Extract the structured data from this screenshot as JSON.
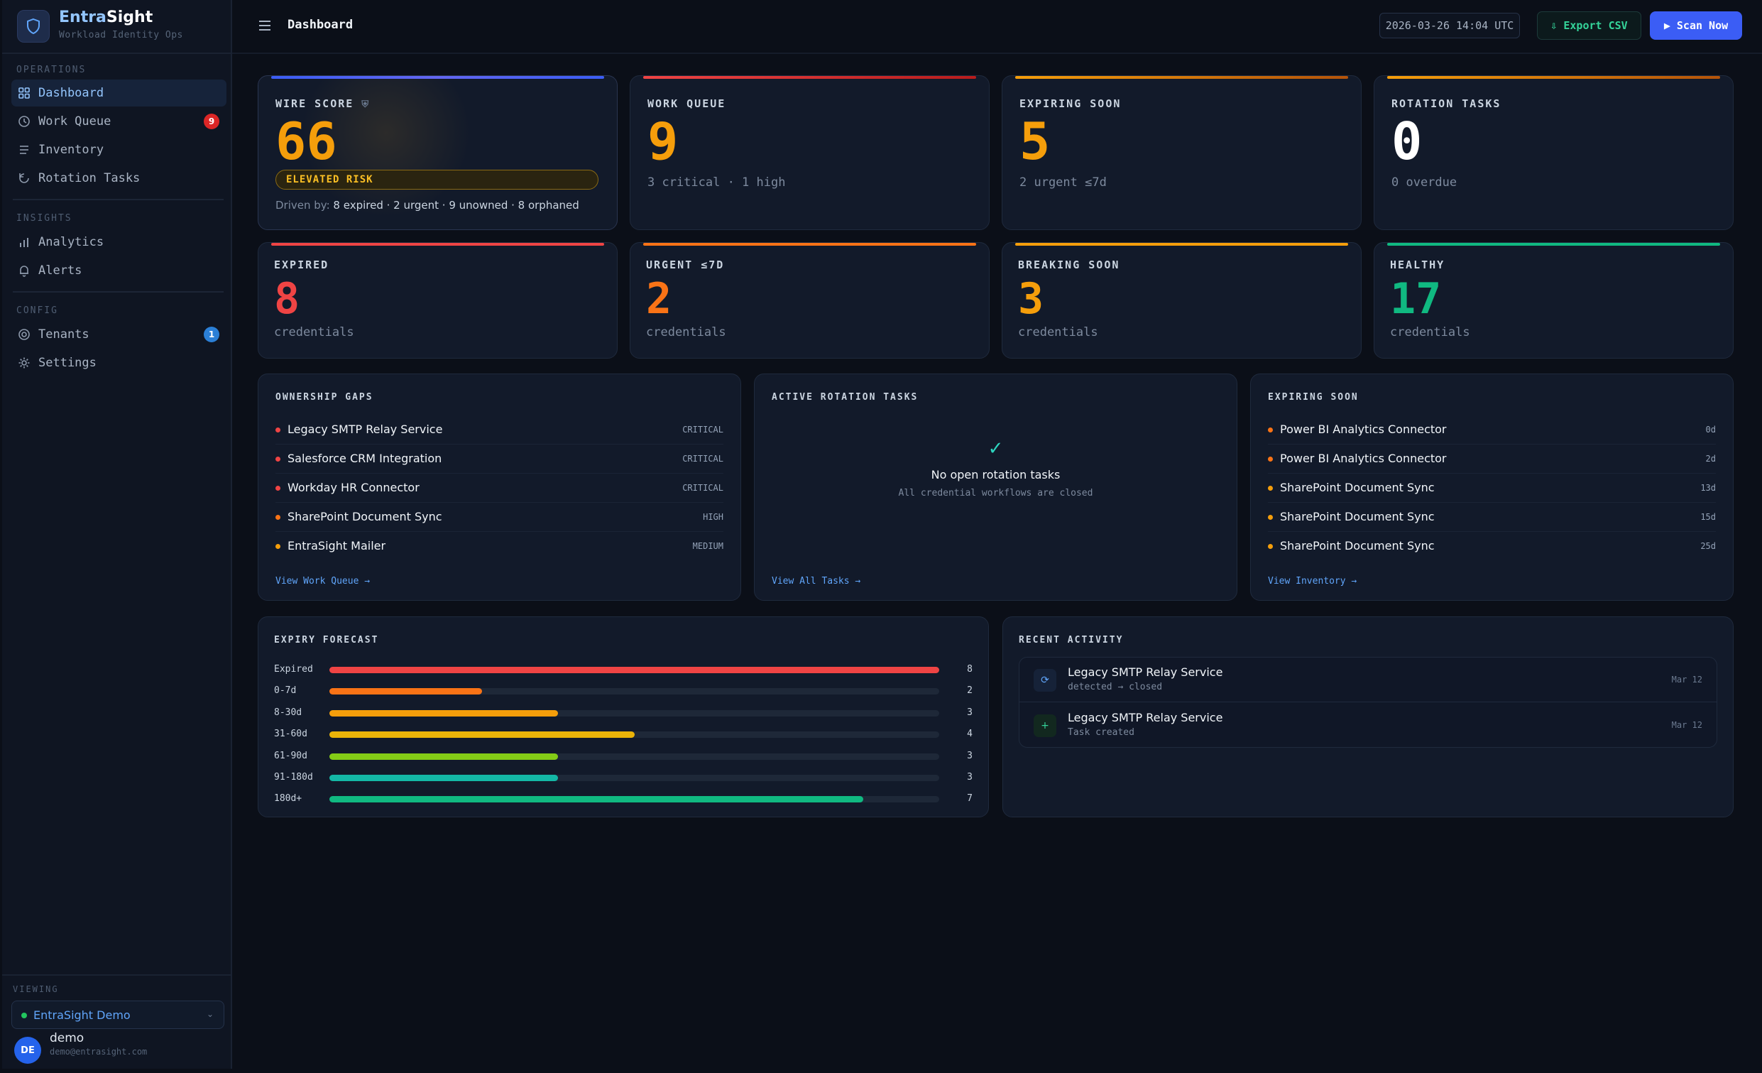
{
  "brand": {
    "name_a": "Entra",
    "name_b": "Sight",
    "subtitle": "Workload Identity Ops"
  },
  "nav": {
    "operations_label": "OPERATIONS",
    "insights_label": "INSIGHTS",
    "config_label": "CONFIG",
    "items": [
      {
        "label": "Dashboard",
        "icon": "grid-icon"
      },
      {
        "label": "Work Queue",
        "icon": "clock-icon",
        "badge": "9",
        "badge_color": "#dc2626"
      },
      {
        "label": "Inventory",
        "icon": "list-icon"
      },
      {
        "label": "Rotation Tasks",
        "icon": "rotate-icon"
      },
      {
        "label": "Analytics",
        "icon": "bar-chart-icon"
      },
      {
        "label": "Alerts",
        "icon": "bell-icon"
      },
      {
        "label": "Tenants",
        "icon": "target-icon",
        "badge": "1",
        "badge_color": "#2b7fd6"
      },
      {
        "label": "Settings",
        "icon": "gear-icon"
      }
    ]
  },
  "viewing": {
    "label": "VIEWING",
    "tenant": "EntraSight Demo"
  },
  "user": {
    "initials": "DE",
    "name": "demo",
    "email": "demo@entrasight.com"
  },
  "header": {
    "title": "Dashboard",
    "timestamp": "2026-03-26 14:04 UTC",
    "export_label": "⇩ Export CSV",
    "scan_label": "▶ Scan Now"
  },
  "kpis": {
    "wire_score": {
      "label": "WIRE SCORE",
      "value": "66",
      "risk": "ELEVATED RISK",
      "driven_prefix": "Driven by:",
      "driven": "8 expired · 2 urgent · 9 unowned · 8 orphaned",
      "color": "#f59e0b"
    },
    "work_queue": {
      "label": "WORK QUEUE",
      "value": "9",
      "sub": "3 critical · 1 high",
      "color": "#f59e0b"
    },
    "expiring_soon": {
      "label": "EXPIRING SOON",
      "value": "5",
      "sub": "2 urgent ≤7d",
      "color": "#f59e0b"
    },
    "rotation_tasks": {
      "label": "ROTATION TASKS",
      "value": "0",
      "sub": "0 overdue",
      "color": "#ffffff"
    }
  },
  "stats": [
    {
      "label": "EXPIRED",
      "value": "8",
      "sub": "credentials",
      "color": "#ef4444"
    },
    {
      "label": "URGENT ≤7D",
      "value": "2",
      "sub": "credentials",
      "color": "#f97316"
    },
    {
      "label": "BREAKING SOON",
      "value": "3",
      "sub": "credentials",
      "color": "#f59e0b"
    },
    {
      "label": "HEALTHY",
      "value": "17",
      "sub": "credentials",
      "color": "#10b981"
    }
  ],
  "ownership": {
    "title": "OWNERSHIP GAPS",
    "items": [
      {
        "name": "Legacy SMTP Relay Service",
        "tag": "CRITICAL",
        "color": "#ef4444"
      },
      {
        "name": "Salesforce CRM Integration",
        "tag": "CRITICAL",
        "color": "#ef4444"
      },
      {
        "name": "Workday HR Connector",
        "tag": "CRITICAL",
        "color": "#ef4444"
      },
      {
        "name": "SharePoint Document Sync",
        "tag": "HIGH",
        "color": "#f97316"
      },
      {
        "name": "EntraSight Mailer",
        "tag": "MEDIUM",
        "color": "#f59e0b"
      }
    ],
    "link": "View Work Queue →"
  },
  "rotation": {
    "title": "ACTIVE ROTATION TASKS",
    "empty_icon": "✓",
    "empty_title": "No open rotation tasks",
    "empty_sub": "All credential workflows are closed",
    "link": "View All Tasks →"
  },
  "expiring": {
    "title": "EXPIRING SOON",
    "items": [
      {
        "name": "Power BI Analytics Connector",
        "tag": "0d",
        "color": "#f97316"
      },
      {
        "name": "Power BI Analytics Connector",
        "tag": "2d",
        "color": "#f97316"
      },
      {
        "name": "SharePoint Document Sync",
        "tag": "13d",
        "color": "#f59e0b"
      },
      {
        "name": "SharePoint Document Sync",
        "tag": "15d",
        "color": "#f59e0b"
      },
      {
        "name": "SharePoint Document Sync",
        "tag": "25d",
        "color": "#f59e0b"
      }
    ],
    "link": "View Inventory →"
  },
  "forecast": {
    "title": "EXPIRY FORECAST",
    "max": 8,
    "rows": [
      {
        "label": "Expired",
        "count": 8,
        "color": "#ef4444"
      },
      {
        "label": "0-7d",
        "count": 2,
        "color": "#f97316"
      },
      {
        "label": "8-30d",
        "count": 3,
        "color": "#f59e0b"
      },
      {
        "label": "31-60d",
        "count": 4,
        "color": "#eab308"
      },
      {
        "label": "61-90d",
        "count": 3,
        "color": "#84cc16"
      },
      {
        "label": "91-180d",
        "count": 3,
        "color": "#14b8a6"
      },
      {
        "label": "180d+",
        "count": 7,
        "color": "#10b981"
      }
    ]
  },
  "activity": {
    "title": "RECENT ACTIVITY",
    "items": [
      {
        "title": "Legacy SMTP Relay Service",
        "sub": "detected → closed",
        "date": "Mar 12",
        "icon": "⟳",
        "icon_name": "refresh-icon",
        "color": "#60a5fa"
      },
      {
        "title": "Legacy SMTP Relay Service",
        "sub": "Task created",
        "date": "Mar 12",
        "icon": "+",
        "icon_name": "plus-icon",
        "color": "#34d399"
      }
    ]
  }
}
